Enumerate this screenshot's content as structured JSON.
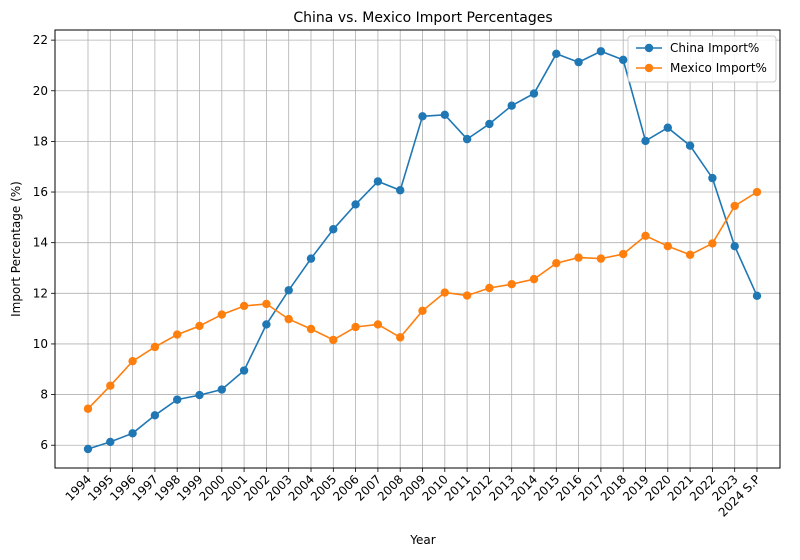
{
  "chart_data": {
    "type": "line",
    "title": "China vs. Mexico Import Percentages",
    "xlabel": "Year",
    "ylabel": "Import Percentage (%)",
    "categories": [
      "1994",
      "1995",
      "1996",
      "1997",
      "1998",
      "1999",
      "2000",
      "2001",
      "2002",
      "2003",
      "2004",
      "2005",
      "2006",
      "2007",
      "2008",
      "2009",
      "2010",
      "2011",
      "2012",
      "2013",
      "2014",
      "2015",
      "2016",
      "2017",
      "2018",
      "2019",
      "2020",
      "2021",
      "2022",
      "2023",
      "2024 S.P"
    ],
    "ylim": [
      5.1,
      22.4
    ],
    "yticks": [
      6,
      8,
      10,
      12,
      14,
      16,
      18,
      20,
      22
    ],
    "grid": true,
    "legend_position": "top-right",
    "series": [
      {
        "name": "China Import%",
        "color": "#1f77b4",
        "values": [
          5.85,
          6.13,
          6.47,
          7.18,
          7.8,
          7.98,
          8.2,
          8.95,
          10.77,
          12.12,
          13.37,
          14.53,
          15.51,
          16.42,
          16.07,
          18.99,
          19.05,
          18.09,
          18.69,
          19.41,
          19.89,
          21.46,
          21.13,
          21.56,
          21.22,
          18.02,
          18.54,
          17.83,
          16.55,
          13.86,
          11.9
        ]
      },
      {
        "name": "Mexico Import%",
        "color": "#ff7f0e",
        "values": [
          7.44,
          8.35,
          9.32,
          9.88,
          10.37,
          10.71,
          11.16,
          11.5,
          11.58,
          10.98,
          10.59,
          10.16,
          10.67,
          10.77,
          10.26,
          11.31,
          12.03,
          11.91,
          12.21,
          12.36,
          12.56,
          13.19,
          13.41,
          13.37,
          13.55,
          14.27,
          13.86,
          13.52,
          13.97,
          15.45,
          16.0
        ]
      }
    ]
  }
}
